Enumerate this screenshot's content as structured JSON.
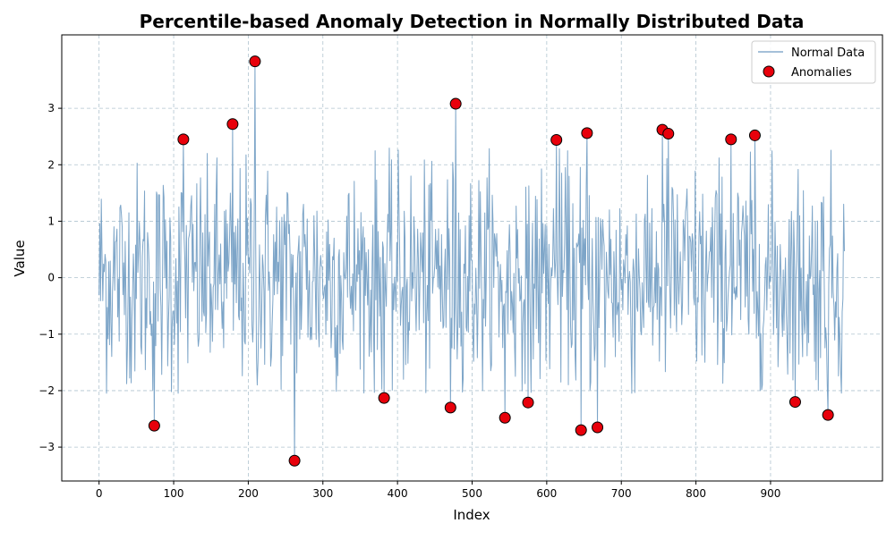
{
  "chart_data": {
    "type": "line",
    "title": "Percentile-based Anomaly Detection in Normally Distributed Data",
    "xlabel": "Index",
    "ylabel": "Value",
    "xlim": [
      -50,
      1050
    ],
    "ylim": [
      -3.6,
      4.3
    ],
    "x_ticks": [
      0,
      100,
      200,
      300,
      400,
      500,
      600,
      700,
      800,
      900
    ],
    "x_tick_labels": [
      "0",
      "100",
      "200",
      "300",
      "400",
      "500",
      "600",
      "700",
      "800",
      "900"
    ],
    "y_ticks": [
      -3,
      -2,
      -1,
      0,
      1,
      2,
      3
    ],
    "y_tick_labels": [
      "−3",
      "−2",
      "−1",
      "0",
      "1",
      "2",
      "3"
    ],
    "grid": true,
    "legend_position": "top-right",
    "series": [
      {
        "name": "Normal Data",
        "kind": "line",
        "color": "#6f9bc2",
        "n_points": 1000,
        "note": "1000 samples approximately standard normal, index 0–999"
      },
      {
        "name": "Anomalies",
        "kind": "scatter",
        "color": "#e8000b",
        "edge_color": "#000000",
        "points": [
          {
            "x": 74,
            "y": -2.62
          },
          {
            "x": 113,
            "y": 2.45
          },
          {
            "x": 179,
            "y": 2.72
          },
          {
            "x": 209,
            "y": 3.83
          },
          {
            "x": 262,
            "y": -3.24
          },
          {
            "x": 382,
            "y": -2.13
          },
          {
            "x": 471,
            "y": -2.3
          },
          {
            "x": 478,
            "y": 3.08
          },
          {
            "x": 544,
            "y": -2.48
          },
          {
            "x": 575,
            "y": -2.21
          },
          {
            "x": 613,
            "y": 2.44
          },
          {
            "x": 646,
            "y": -2.7
          },
          {
            "x": 654,
            "y": 2.56
          },
          {
            "x": 668,
            "y": -2.65
          },
          {
            "x": 755,
            "y": 2.62
          },
          {
            "x": 763,
            "y": 2.55
          },
          {
            "x": 847,
            "y": 2.45
          },
          {
            "x": 879,
            "y": 2.52
          },
          {
            "x": 933,
            "y": -2.2
          },
          {
            "x": 977,
            "y": -2.43
          }
        ]
      }
    ]
  }
}
